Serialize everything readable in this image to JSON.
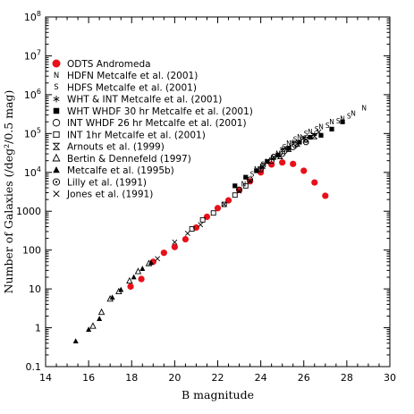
{
  "chart_data": {
    "type": "scatter",
    "xlabel": "B magnitude",
    "ylabel": "Number of Galaxies (/deg²/0.5 mag)",
    "xlim": [
      14,
      30
    ],
    "ylim": [
      0.1,
      100000000
    ],
    "y_scale": "log",
    "x_ticks": [
      "14",
      "16",
      "18",
      "20",
      "22",
      "24",
      "26",
      "28",
      "30"
    ],
    "y_ticks": [
      "0.1",
      "1",
      "10",
      "100",
      "1000",
      "10^4",
      "10^5",
      "10^6",
      "10^7",
      "10^8"
    ],
    "legend_position": "top-left",
    "series": [
      {
        "name": "ODTS Andromeda",
        "marker": "filled-circle",
        "color": "#e8101a",
        "points": [
          [
            17.95,
            11.5
          ],
          [
            18.45,
            18
          ],
          [
            19.0,
            50
          ],
          [
            19.5,
            85
          ],
          [
            20.0,
            120
          ],
          [
            20.5,
            190
          ],
          [
            21.0,
            380
          ],
          [
            21.5,
            720
          ],
          [
            22.0,
            1200
          ],
          [
            22.5,
            1900
          ],
          [
            23.0,
            3500
          ],
          [
            23.5,
            5900
          ],
          [
            24.0,
            10000
          ],
          [
            24.5,
            16000
          ],
          [
            25.0,
            18000
          ],
          [
            25.5,
            16500
          ],
          [
            26.0,
            11000
          ],
          [
            26.5,
            5500
          ],
          [
            27.0,
            2500
          ]
        ]
      },
      {
        "name": "HDFN Metcalfe et al. (2001)",
        "marker": "N",
        "color": "#000000",
        "points": [
          [
            23.2,
            5000
          ],
          [
            23.8,
            12000
          ],
          [
            24.3,
            19000
          ],
          [
            24.8,
            30000
          ],
          [
            25.3,
            55000
          ],
          [
            25.8,
            80000
          ],
          [
            26.3,
            110000
          ],
          [
            26.8,
            150000
          ],
          [
            27.3,
            200000
          ],
          [
            27.8,
            240000
          ],
          [
            28.3,
            330000
          ],
          [
            28.8,
            450000
          ]
        ]
      },
      {
        "name": "HDFS Metcalfe et al. (2001)",
        "marker": "S",
        "color": "#000000",
        "points": [
          [
            23.6,
            9000
          ],
          [
            24.1,
            16000
          ],
          [
            24.6,
            25000
          ],
          [
            25.1,
            45000
          ],
          [
            25.6,
            70000
          ],
          [
            26.1,
            100000
          ],
          [
            26.6,
            130000
          ],
          [
            27.1,
            160000
          ],
          [
            27.6,
            210000
          ],
          [
            28.1,
            280000
          ]
        ]
      },
      {
        "name": "WHT & INT Metcalfe et al. (2001)",
        "marker": "star",
        "color": "#000000",
        "points": [
          [
            24.0,
            13000
          ],
          [
            24.5,
            22000
          ],
          [
            25.0,
            40000
          ],
          [
            25.5,
            60000
          ],
          [
            26.0,
            75000
          ],
          [
            26.5,
            95000
          ]
        ]
      },
      {
        "name": "WHT WHDF 30 hr Metcalfe et al. (2001)",
        "marker": "filled-square",
        "color": "#000000",
        "points": [
          [
            22.8,
            4500
          ],
          [
            23.3,
            7500
          ],
          [
            23.8,
            11000
          ],
          [
            24.3,
            19000
          ],
          [
            24.8,
            28000
          ],
          [
            25.3,
            42000
          ],
          [
            25.8,
            60000
          ],
          [
            26.3,
            80000
          ],
          [
            26.8,
            90000
          ],
          [
            27.3,
            130000
          ],
          [
            27.8,
            200000
          ]
        ]
      },
      {
        "name": "INT WHDF 26 hr Metcalfe et al. (2001)",
        "marker": "open-circle",
        "color": "#000000",
        "points": [
          [
            23.0,
            3600
          ],
          [
            23.5,
            6500
          ],
          [
            24.0,
            12000
          ],
          [
            24.5,
            20000
          ],
          [
            25.0,
            30000
          ],
          [
            25.5,
            45000
          ]
        ]
      },
      {
        "name": "INT 1hr Metcalfe et al. (2001)",
        "marker": "open-square",
        "color": "#000000",
        "points": [
          [
            20.8,
            350
          ],
          [
            21.3,
            600
          ],
          [
            21.8,
            900
          ],
          [
            22.3,
            1500
          ],
          [
            22.8,
            2600
          ],
          [
            23.3,
            4500
          ]
        ]
      },
      {
        "name": "Arnouts et al. (1999)",
        "marker": "hourglass",
        "color": "#000000",
        "points": [
          [
            24.9,
            26000
          ],
          [
            25.3,
            40000
          ],
          [
            25.7,
            55000
          ],
          [
            26.1,
            70000
          ],
          [
            26.5,
            85000
          ]
        ]
      },
      {
        "name": "Bertin & Dennefeld (1997)",
        "marker": "open-triangle",
        "color": "#000000",
        "points": [
          [
            16.2,
            1.1
          ],
          [
            16.6,
            2.5
          ],
          [
            17.0,
            5.5
          ],
          [
            17.4,
            8.5
          ],
          [
            17.9,
            16
          ],
          [
            18.3,
            28
          ],
          [
            18.8,
            45
          ]
        ]
      },
      {
        "name": "Metcalfe et al. (1995b)",
        "marker": "filled-triangle",
        "color": "#000000",
        "points": [
          [
            15.4,
            0.45
          ],
          [
            16.0,
            0.9
          ],
          [
            16.5,
            1.7
          ],
          [
            17.1,
            6
          ],
          [
            17.5,
            9.5
          ],
          [
            18.1,
            20
          ],
          [
            18.5,
            33
          ],
          [
            18.9,
            47
          ]
        ]
      },
      {
        "name": "Lilly et al. (1991)",
        "marker": "octagon",
        "color": "#000000",
        "points": [
          [
            24.1,
            15000
          ],
          [
            24.6,
            25000
          ],
          [
            25.1,
            35000
          ],
          [
            25.6,
            50000
          ],
          [
            26.1,
            60000
          ]
        ]
      },
      {
        "name": "Jones et al. (1991)",
        "marker": "x",
        "color": "#000000",
        "points": [
          [
            19.2,
            60
          ],
          [
            20.0,
            160
          ],
          [
            20.6,
            270
          ],
          [
            21.2,
            450
          ],
          [
            22.3,
            1500
          ],
          [
            23.0,
            3300
          ],
          [
            23.5,
            6000
          ],
          [
            24.1,
            14000
          ],
          [
            24.6,
            24000
          ],
          [
            25.2,
            40000
          ],
          [
            26.0,
            78000
          ],
          [
            26.7,
            110000
          ]
        ]
      }
    ]
  }
}
